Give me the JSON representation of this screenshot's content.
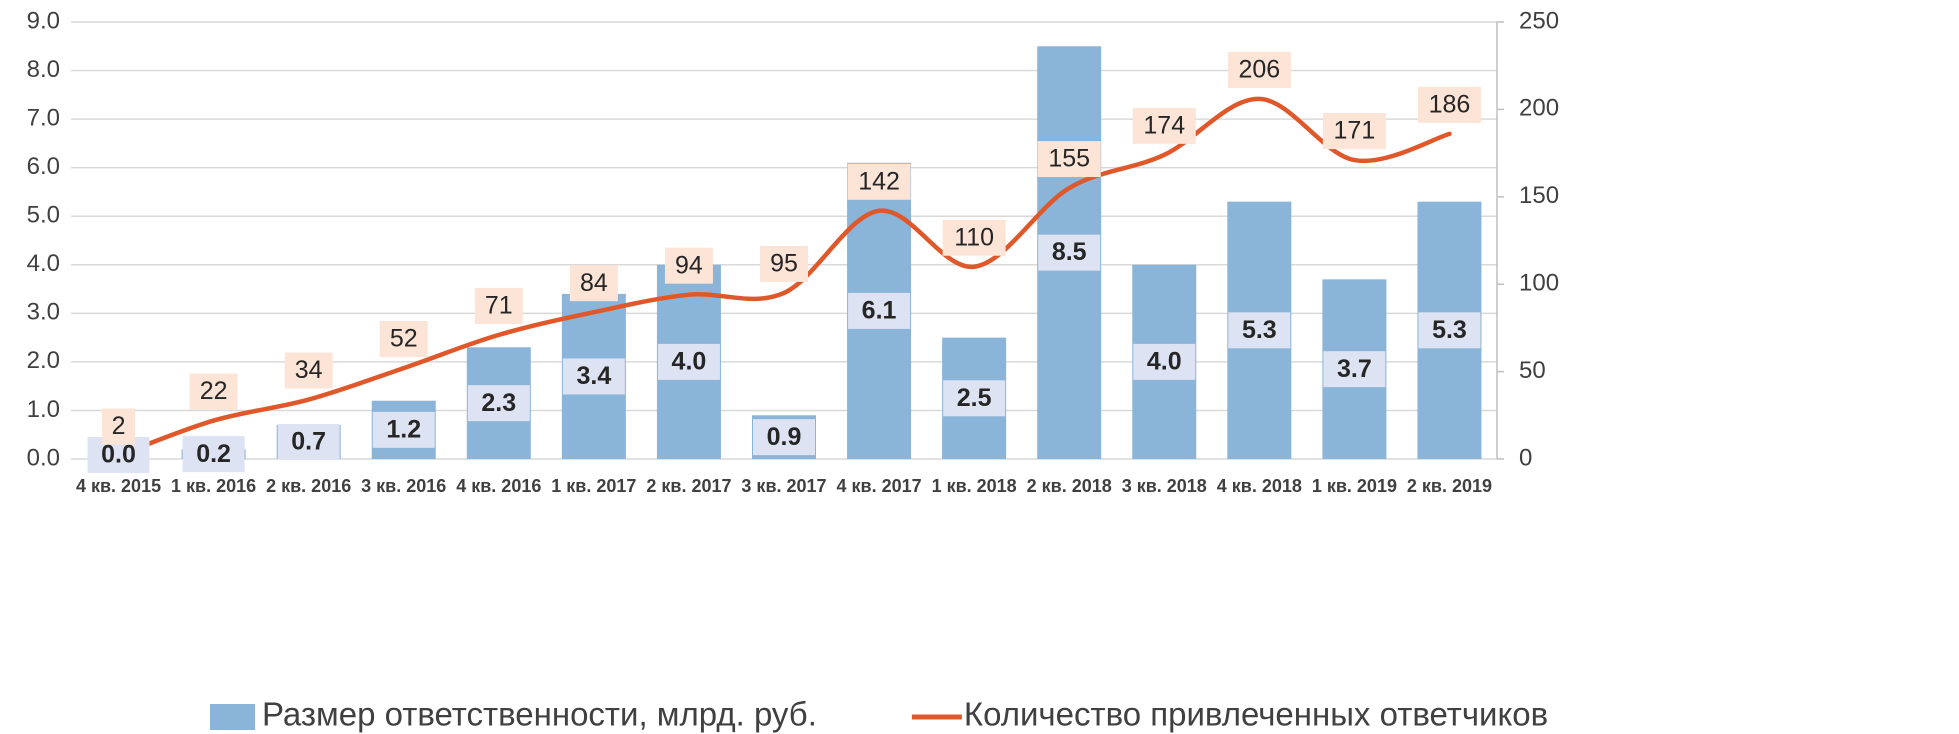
{
  "chart_data": {
    "type": "combo",
    "categories": [
      "4 кв. 2015",
      "1 кв. 2016",
      "2 кв. 2016",
      "3 кв. 2016",
      "4 кв. 2016",
      "1 кв. 2017",
      "2 кв. 2017",
      "3 кв. 2017",
      "4 кв. 2017",
      "1 кв. 2018",
      "2 кв. 2018",
      "3 кв. 2018",
      "4 кв. 2018",
      "1 кв. 2019",
      "2 кв. 2019"
    ],
    "series": [
      {
        "name": "Размер ответственности, млрд. руб.",
        "type": "bar",
        "axis": "y",
        "color": "#8ab4d8",
        "values": [
          0.0,
          0.2,
          0.7,
          1.2,
          2.3,
          3.4,
          4.0,
          0.9,
          6.1,
          2.5,
          8.5,
          4.0,
          5.3,
          3.7,
          5.3
        ],
        "value_labels": [
          "0.0",
          "0.2",
          "0.7",
          "1.2",
          "2.3",
          "3.4",
          "4.0",
          "0.9",
          "6.1",
          "2.5",
          "8.5",
          "4.0",
          "5.3",
          "3.7",
          "5.3"
        ]
      },
      {
        "name": "Количество привлеченных ответчиков",
        "type": "line",
        "axis": "y2",
        "color": "#e0582a",
        "values": [
          2,
          22,
          34,
          52,
          71,
          84,
          94,
          95,
          142,
          110,
          155,
          174,
          206,
          171,
          186
        ]
      }
    ],
    "ylim": [
      0,
      9
    ],
    "yticks": [
      {
        "value": 0,
        "label": "0.0"
      },
      {
        "value": 1,
        "label": "1.0"
      },
      {
        "value": 2,
        "label": "2.0"
      },
      {
        "value": 3,
        "label": "3.0"
      },
      {
        "value": 4,
        "label": "4.0"
      },
      {
        "value": 5,
        "label": "5.0"
      },
      {
        "value": 6,
        "label": "6.0"
      },
      {
        "value": 7,
        "label": "7.0"
      },
      {
        "value": 8,
        "label": "8.0"
      },
      {
        "value": 9,
        "label": "9.0"
      }
    ],
    "y2lim": [
      0,
      250
    ],
    "y2ticks": [
      0,
      50,
      100,
      150,
      200,
      250
    ],
    "grid": true,
    "legend": "bottom"
  }
}
